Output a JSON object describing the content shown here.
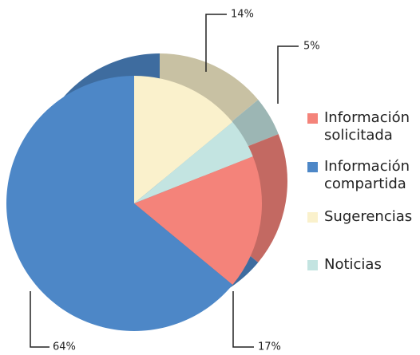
{
  "chart_data": {
    "type": "pie",
    "categories": [
      "Información solicitada",
      "Información compartida",
      "Sugerencias",
      "Noticias"
    ],
    "values": [
      17,
      64,
      14,
      5
    ],
    "value_labels": [
      "17%",
      "64%",
      "14%",
      "5%"
    ],
    "colors": [
      "#f4837a",
      "#4d87c7",
      "#faf1cc",
      "#c3e4e1"
    ],
    "legend": "right"
  }
}
